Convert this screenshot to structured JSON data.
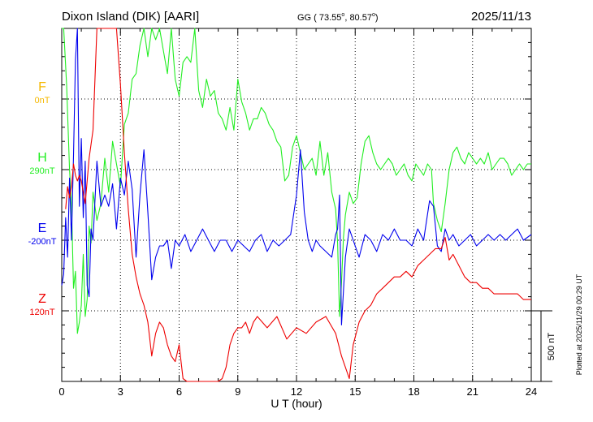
{
  "header": {
    "station": "Dixon Island (DIK)  [AARI]",
    "coords_prefix": "GG ( 73.55",
    "coords_sep": ",  80.57",
    "coords_suffix": ")",
    "degree_mark": "o",
    "date": "2025/11/13"
  },
  "plotted_note": "Plotted at 2025/11/29 00:29 UT",
  "scale_label": "500 nT",
  "chart_data": {
    "type": "line",
    "xlabel": "U T (hour)",
    "xlim": [
      0,
      24
    ],
    "x_ticks": [
      "0",
      "3",
      "6",
      "9",
      "12",
      "15",
      "18",
      "21",
      "24"
    ],
    "y_unit": "nT",
    "y_scale_nt_per_division": 125,
    "grid": true,
    "series": [
      {
        "name": "F",
        "baseline_label": "0nT",
        "baseline": 0,
        "color": "#f5b800",
        "x": [],
        "values": []
      },
      {
        "name": "H",
        "baseline_label": "290nT",
        "baseline": 290,
        "color": "#22ee22",
        "x": [
          0,
          0.1,
          0.25,
          0.4,
          0.5,
          0.6,
          0.7,
          0.8,
          0.9,
          1.0,
          1.1,
          1.2,
          1.3,
          1.4,
          1.5,
          1.6,
          1.8,
          2.0,
          2.2,
          2.4,
          2.6,
          2.8,
          3.0,
          3.2,
          3.4,
          3.6,
          3.8,
          4.0,
          4.2,
          4.4,
          4.6,
          4.8,
          5.0,
          5.2,
          5.4,
          5.6,
          5.8,
          6.0,
          6.2,
          6.4,
          6.6,
          6.8,
          7.0,
          7.2,
          7.4,
          7.6,
          7.8,
          8.0,
          8.2,
          8.4,
          8.6,
          8.8,
          9.0,
          9.2,
          9.4,
          9.6,
          9.8,
          10.0,
          10.2,
          10.4,
          10.6,
          10.8,
          11.0,
          11.2,
          11.4,
          11.6,
          11.8,
          12.0,
          12.2,
          12.4,
          12.6,
          12.8,
          13.0,
          13.2,
          13.4,
          13.6,
          13.8,
          14.0,
          14.1,
          14.2,
          14.3,
          14.4,
          14.5,
          14.7,
          14.9,
          15.1,
          15.3,
          15.5,
          15.7,
          15.9,
          16.1,
          16.3,
          16.5,
          16.7,
          16.9,
          17.1,
          17.3,
          17.5,
          17.7,
          17.9,
          18.1,
          18.3,
          18.5,
          18.7,
          18.9,
          19.0,
          19.2,
          19.4,
          19.6,
          19.8,
          20.0,
          20.2,
          20.4,
          20.6,
          20.8,
          21.0,
          21.2,
          21.4,
          21.6,
          21.8,
          22.0,
          22.2,
          22.4,
          22.6,
          22.8,
          23.0,
          23.2,
          23.4,
          23.6,
          23.8,
          24.0
        ],
        "values": [
          330,
          310,
          150,
          0,
          -60,
          -210,
          -180,
          -290,
          -270,
          -240,
          -150,
          -260,
          -230,
          -100,
          -130,
          -40,
          -90,
          -60,
          20,
          -40,
          50,
          10,
          -30,
          80,
          100,
          160,
          170,
          220,
          260,
          200,
          390,
          230,
          280,
          210,
          170,
          250,
          160,
          130,
          190,
          200,
          190,
          250,
          140,
          110,
          160,
          130,
          140,
          100,
          90,
          70,
          110,
          70,
          160,
          120,
          100,
          70,
          90,
          90,
          110,
          100,
          80,
          70,
          50,
          40,
          -20,
          -10,
          40,
          60,
          30,
          0,
          10,
          20,
          -10,
          50,
          -10,
          30,
          -40,
          -70,
          -130,
          -260,
          -200,
          -120,
          -80,
          -40,
          -60,
          -50,
          10,
          50,
          60,
          30,
          10,
          0,
          10,
          20,
          10,
          -10,
          0,
          10,
          -10,
          -20,
          10,
          0,
          -10,
          10,
          0,
          -60,
          -90,
          -110,
          -60,
          0,
          30,
          40,
          20,
          10,
          30,
          20,
          10,
          20,
          10,
          30,
          0,
          10,
          20,
          20,
          10,
          -10,
          0,
          10,
          0,
          10,
          10
        ]
      },
      {
        "name": "E",
        "baseline_label": "-200nT",
        "baseline": -200,
        "color": "#0000ee",
        "x": [
          0,
          0.1,
          0.2,
          0.3,
          0.4,
          0.5,
          0.6,
          0.7,
          0.8,
          0.9,
          1.0,
          1.1,
          1.2,
          1.3,
          1.4,
          1.5,
          1.6,
          1.8,
          2.0,
          2.2,
          2.4,
          2.6,
          2.8,
          3.0,
          3.2,
          3.4,
          3.6,
          3.8,
          4.0,
          4.2,
          4.4,
          4.6,
          4.8,
          5.0,
          5.2,
          5.4,
          5.6,
          5.8,
          6.0,
          6.3,
          6.6,
          6.9,
          7.2,
          7.5,
          7.8,
          8.1,
          8.4,
          8.7,
          9.0,
          9.3,
          9.6,
          9.9,
          10.2,
          10.5,
          10.8,
          11.1,
          11.4,
          11.7,
          12.0,
          12.2,
          12.4,
          12.6,
          12.8,
          13.0,
          13.2,
          13.5,
          13.8,
          14.0,
          14.1,
          14.2,
          14.3,
          14.5,
          14.7,
          14.9,
          15.2,
          15.5,
          15.8,
          16.1,
          16.4,
          16.7,
          17.0,
          17.3,
          17.6,
          17.9,
          18.2,
          18.5,
          18.8,
          19.0,
          19.2,
          19.4,
          19.6,
          19.8,
          20.0,
          20.3,
          20.6,
          20.9,
          21.2,
          21.5,
          21.8,
          22.1,
          22.4,
          22.7,
          23.0,
          23.3,
          23.6,
          24.0
        ],
        "values": [
          -80,
          -60,
          40,
          -30,
          110,
          0,
          150,
          320,
          460,
          60,
          180,
          40,
          140,
          -80,
          -100,
          20,
          0,
          140,
          60,
          80,
          60,
          100,
          20,
          110,
          80,
          140,
          90,
          -30,
          80,
          160,
          50,
          -70,
          -30,
          -10,
          -10,
          0,
          -50,
          0,
          -10,
          10,
          -20,
          0,
          20,
          0,
          -20,
          0,
          0,
          -20,
          0,
          -10,
          -20,
          0,
          10,
          -20,
          0,
          -10,
          0,
          10,
          80,
          160,
          50,
          0,
          -20,
          0,
          -10,
          -20,
          -30,
          10,
          20,
          80,
          -150,
          -30,
          20,
          0,
          -30,
          10,
          0,
          -20,
          10,
          0,
          20,
          0,
          0,
          -10,
          20,
          0,
          70,
          60,
          -10,
          -20,
          20,
          0,
          10,
          -10,
          0,
          10,
          -10,
          0,
          10,
          0,
          10,
          0,
          10,
          20,
          0,
          10
        ]
      },
      {
        "name": "Z",
        "baseline_label": "120nT",
        "baseline": 120,
        "color": "#ee0000",
        "x": [
          0.2,
          0.3,
          0.4,
          0.5,
          0.6,
          0.7,
          0.8,
          0.9,
          1.0,
          1.2,
          1.4,
          1.6,
          1.8,
          2.0,
          2.2,
          2.4,
          2.6,
          2.8,
          3.0,
          3.2,
          3.4,
          3.6,
          3.8,
          4.0,
          4.2,
          4.4,
          4.6,
          4.8,
          5.0,
          5.2,
          5.4,
          5.6,
          5.8,
          6.0,
          6.2,
          6.4,
          6.6,
          6.8,
          7.0,
          7.2,
          7.4,
          7.6,
          7.8,
          8.0,
          8.2,
          8.4,
          8.6,
          8.8,
          9.0,
          9.2,
          9.4,
          9.6,
          9.8,
          10.0,
          10.5,
          11.0,
          11.5,
          12.0,
          12.5,
          13.0,
          13.5,
          14.0,
          14.3,
          14.5,
          14.7,
          14.9,
          15.2,
          15.5,
          15.8,
          16.1,
          16.4,
          16.7,
          17.0,
          17.3,
          17.6,
          17.9,
          18.2,
          18.5,
          18.8,
          19.1,
          19.4,
          19.6,
          19.8,
          20.0,
          20.3,
          20.6,
          20.9,
          21.2,
          21.5,
          21.8,
          22.1,
          22.4,
          22.7,
          23.0,
          23.3,
          23.6,
          24.0
        ],
        "values": [
          180,
          220,
          200,
          220,
          260,
          240,
          230,
          240,
          230,
          190,
          270,
          320,
          520,
          580,
          560,
          500,
          560,
          550,
          400,
          280,
          180,
          100,
          60,
          30,
          10,
          -20,
          -80,
          -40,
          -20,
          -30,
          -60,
          -80,
          -90,
          -60,
          -120,
          -150,
          -140,
          -130,
          -150,
          -180,
          -200,
          -220,
          -200,
          -160,
          -120,
          -100,
          -60,
          -40,
          -30,
          -30,
          -20,
          -40,
          -20,
          -10,
          -30,
          -10,
          -50,
          -30,
          -40,
          -20,
          -10,
          -40,
          -80,
          -100,
          -120,
          -60,
          -20,
          0,
          10,
          30,
          40,
          50,
          60,
          60,
          70,
          60,
          80,
          90,
          100,
          110,
          110,
          130,
          90,
          100,
          80,
          60,
          50,
          50,
          40,
          40,
          30,
          30,
          30,
          30,
          30,
          20,
          20
        ]
      }
    ]
  }
}
